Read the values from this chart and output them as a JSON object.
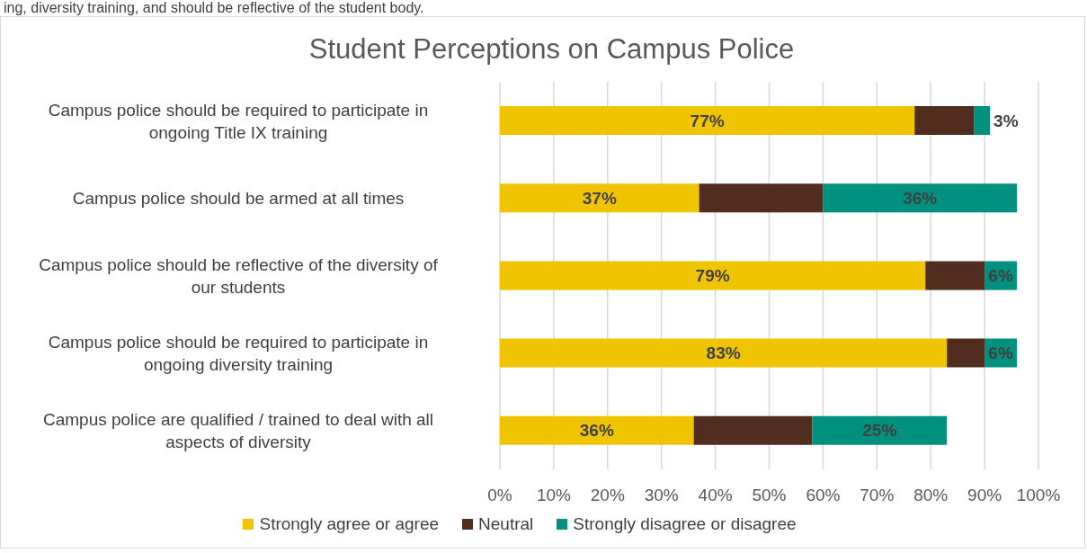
{
  "chart_data": {
    "type": "bar",
    "orientation": "horizontal",
    "stacked": true,
    "title": "Student Perceptions on Campus Police",
    "annotations": [
      "ing, diversity training, and should be reflective of the student body."
    ],
    "categories": [
      "Campus police should be required to participate in ongoing Title IX training",
      "Campus police should be armed at all times",
      "Campus police should be reflective of the diversity of our students",
      "Campus police should be required to participate in ongoing diversity training",
      "Campus police are qualified / trained to deal with all aspects of diversity"
    ],
    "series": [
      {
        "name": "Strongly agree or agree",
        "color": "#f0c400",
        "values": [
          77,
          37,
          79,
          83,
          36
        ],
        "value_labels": [
          "77%",
          "37%",
          "79%",
          "83%",
          "36%"
        ]
      },
      {
        "name": "Neutral",
        "color": "#512d20",
        "values": [
          11,
          23,
          11,
          7,
          22
        ]
      },
      {
        "name": "Strongly disagree or disagree",
        "color": "#009080",
        "values": [
          3,
          36,
          6,
          6,
          25
        ],
        "value_labels": [
          "3%",
          "36%",
          "6%",
          "6%",
          "25%"
        ]
      }
    ],
    "xlim": [
      0,
      100
    ],
    "xticks": [
      {
        "value": 0,
        "label": "0%"
      },
      {
        "value": 10,
        "label": "10%"
      },
      {
        "value": 20,
        "label": "20%"
      },
      {
        "value": 30,
        "label": "30%"
      },
      {
        "value": 40,
        "label": "40%"
      },
      {
        "value": 50,
        "label": "50%"
      },
      {
        "value": 60,
        "label": "60%"
      },
      {
        "value": 70,
        "label": "70%"
      },
      {
        "value": 80,
        "label": "80%"
      },
      {
        "value": 90,
        "label": "90%"
      },
      {
        "value": 100,
        "label": "100%"
      }
    ],
    "grid": "x",
    "legend": "bottom"
  }
}
